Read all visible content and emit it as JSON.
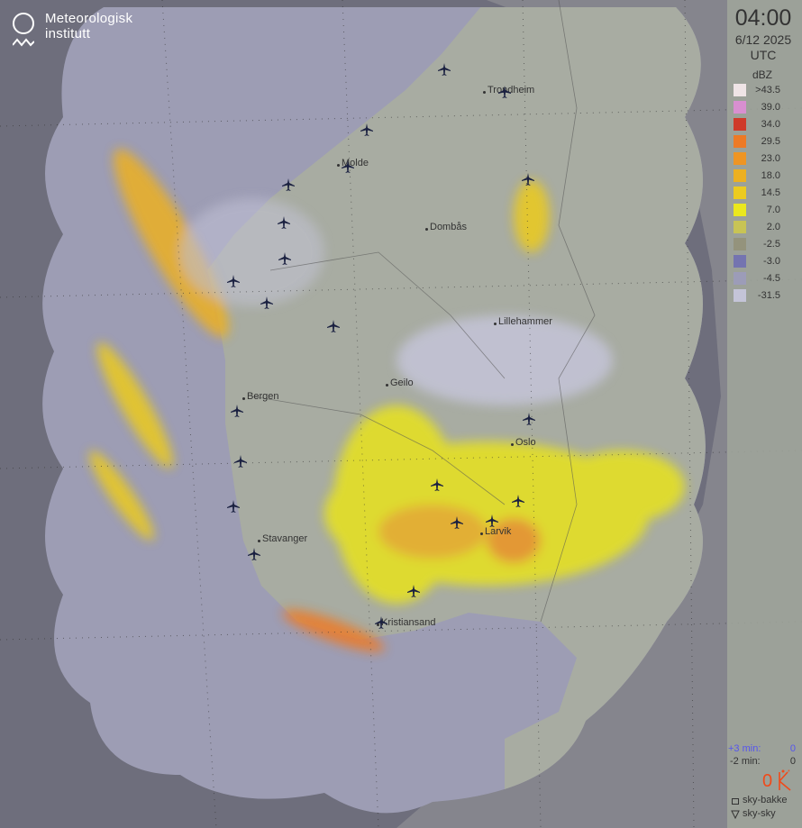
{
  "logo": {
    "line1": "Meteorologisk",
    "line2": "institutt"
  },
  "time": {
    "clock": "04:00",
    "date": "6/12 2025",
    "zone": "UTC"
  },
  "legend": {
    "unit": "dBZ",
    "items": [
      {
        "label": ">43.5",
        "color": "#efe4e6"
      },
      {
        "label": "39.0",
        "color": "#d88fd0"
      },
      {
        "label": "34.0",
        "color": "#cf3a2a"
      },
      {
        "label": "29.5",
        "color": "#ed7a26"
      },
      {
        "label": "23.0",
        "color": "#ee9524"
      },
      {
        "label": "18.0",
        "color": "#ecb021"
      },
      {
        "label": "14.5",
        "color": "#eccb1f"
      },
      {
        "label": "7.0",
        "color": "#ebe81d"
      },
      {
        "label": "2.0",
        "color": "#c8c455"
      },
      {
        "label": "-2.5",
        "color": "#94937c"
      },
      {
        "label": "-3.0",
        "color": "#7474b0"
      },
      {
        "label": "-4.5",
        "color": "#9c9cb8"
      },
      {
        "label": "-31.5",
        "color": "#c4c4d8"
      }
    ]
  },
  "lightning": {
    "plus3_label": "+3 min:",
    "plus3_value": "0",
    "minus2_label": "-2 min:",
    "minus2_value": "0",
    "total": "0",
    "cloud_ground_label": "sky-bakke",
    "cloud_cloud_label": "sky-sky",
    "accent": "#f04a1a"
  },
  "cities": [
    {
      "name": "Trondheim"
    },
    {
      "name": "Molde"
    },
    {
      "name": "Dombås"
    },
    {
      "name": "Lillehammer"
    },
    {
      "name": "Geilo"
    },
    {
      "name": "Bergen"
    },
    {
      "name": "Oslo"
    },
    {
      "name": "Stavanger"
    },
    {
      "name": "Larvik"
    },
    {
      "name": "Kristiansand"
    }
  ],
  "airport_icon": "airplane-icon"
}
